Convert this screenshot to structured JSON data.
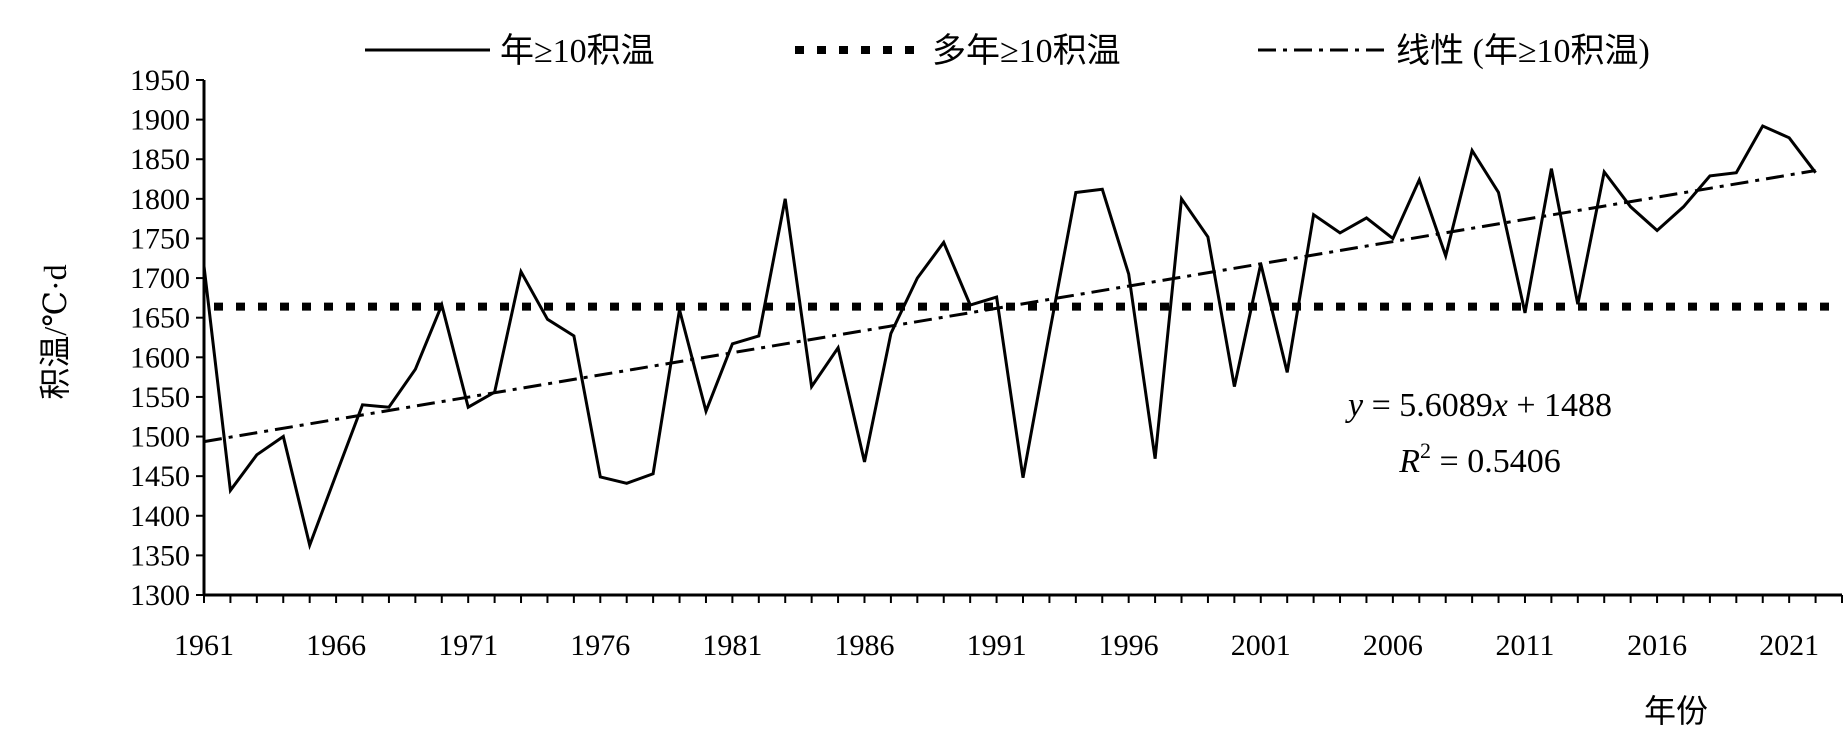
{
  "chart_data": {
    "type": "line",
    "title": "",
    "xlabel": "年份",
    "ylabel": "积温/℃·d",
    "ylim": [
      1300,
      1950
    ],
    "xlim": [
      1961,
      2023
    ],
    "yticks": [
      1300,
      1350,
      1400,
      1450,
      1500,
      1550,
      1600,
      1650,
      1700,
      1750,
      1800,
      1850,
      1900,
      1950
    ],
    "xticks": [
      1961,
      1966,
      1971,
      1976,
      1981,
      1986,
      1991,
      1996,
      2001,
      2006,
      2011,
      2016,
      2021
    ],
    "grid": false,
    "legend_position": "top",
    "x": [
      1961,
      1962,
      1963,
      1964,
      1965,
      1966,
      1967,
      1968,
      1969,
      1970,
      1971,
      1972,
      1973,
      1974,
      1975,
      1976,
      1977,
      1978,
      1979,
      1980,
      1981,
      1982,
      1983,
      1984,
      1985,
      1986,
      1987,
      1988,
      1989,
      1990,
      1991,
      1992,
      1993,
      1994,
      1995,
      1996,
      1997,
      1998,
      1999,
      2000,
      2001,
      2002,
      2003,
      2004,
      2005,
      2006,
      2007,
      2008,
      2009,
      2010,
      2011,
      2012,
      2013,
      2014,
      2015,
      2016,
      2017,
      2018,
      2019,
      2020,
      2021,
      2022,
      2023
    ],
    "series": [
      {
        "name": "年≥10积温",
        "style": "solid",
        "values": [
          1715,
          1432,
          1477,
          1500,
          1363,
          1452,
          1540,
          1537,
          1585,
          1666,
          1537,
          1556,
          1708,
          1648,
          1627,
          1449,
          1441,
          1453,
          1660,
          1532,
          1617,
          1627,
          1800,
          1563,
          1612,
          1468,
          1630,
          1700,
          1745,
          1666,
          1676,
          1448,
          1630,
          1808,
          1812,
          1705,
          1472,
          1800,
          1752,
          1563,
          1718,
          1581,
          1780,
          1757,
          1776,
          1750,
          1824,
          1728,
          1861,
          1808,
          1656,
          1838,
          1667,
          1834,
          1790,
          1760,
          1790,
          1829,
          1833,
          1892,
          1877,
          1833,
          null
        ]
      },
      {
        "name": "多年≥10积温",
        "style": "dotted",
        "constant": 1664
      },
      {
        "name": "线性 (年≥10积温)",
        "style": "dash-dot",
        "slope": 5.6089,
        "intercept": 1488
      }
    ],
    "annotations": {
      "equation_y": "y",
      "equation_rest": " = 5.6089",
      "equation_x": "x",
      "equation_tail": " + 1488",
      "r_label": "R",
      "r_sup": "2",
      "r_value": " = 0.5406"
    }
  }
}
